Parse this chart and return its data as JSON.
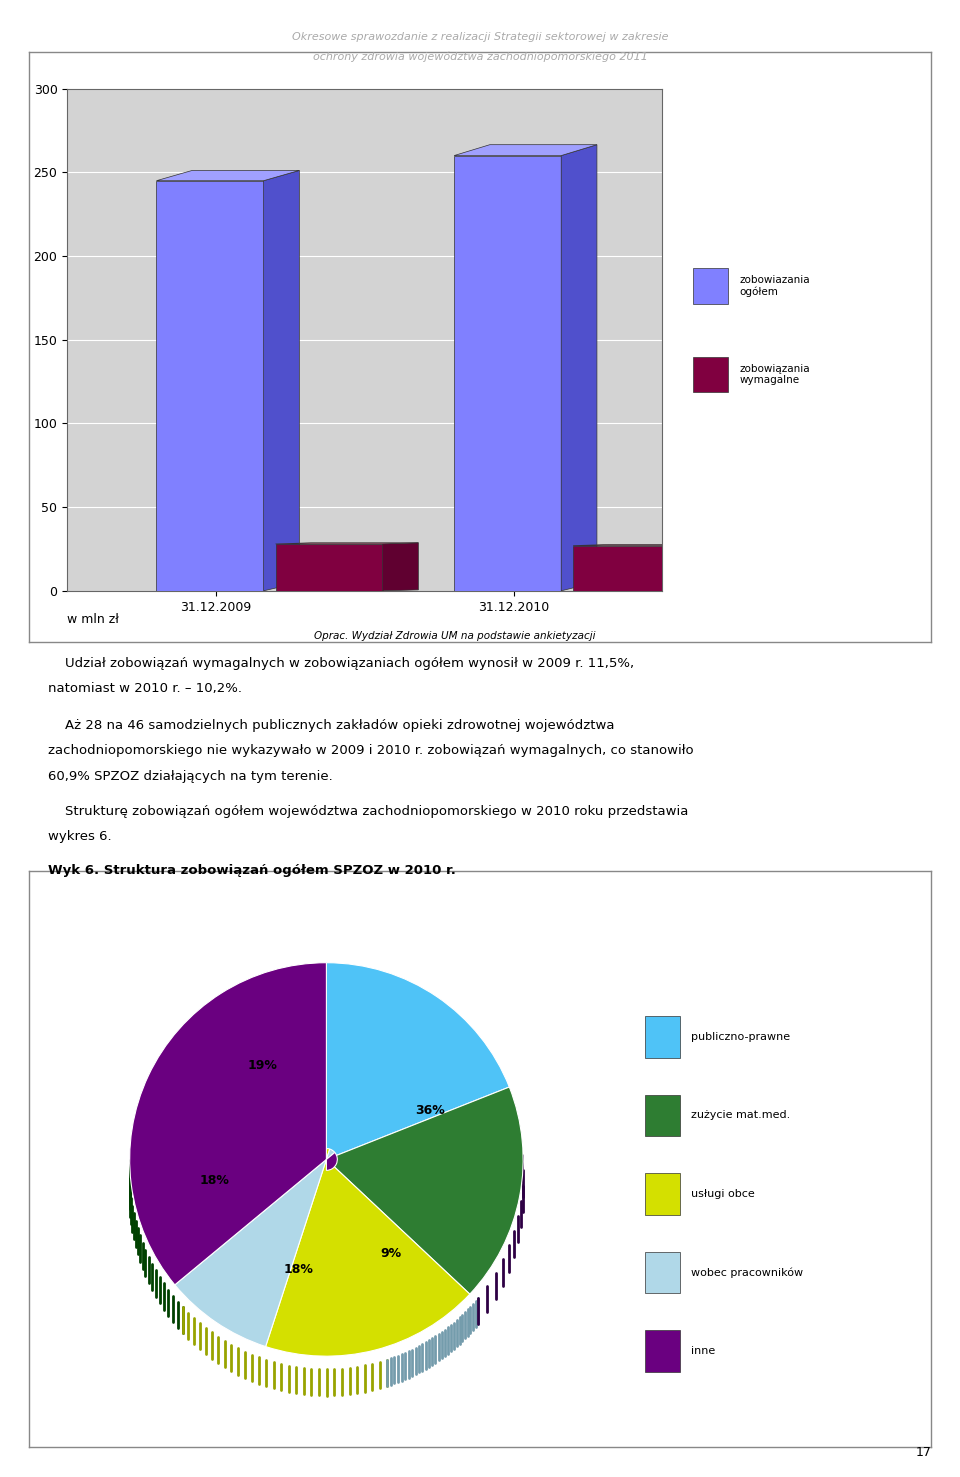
{
  "page_title_line1": "Okresowe sprawozdanie z realizacji Strategii sektorowej w zakresie",
  "page_title_line2": "ochrony zdrowia województwa zachodniopomorskiego 2011",
  "page_number": "17",
  "bar_categories": [
    "31.12.2009",
    "31.12.2010"
  ],
  "bar_series": [
    {
      "label": "zobowiazania ogółem",
      "values": [
        245,
        260
      ],
      "color": "#8080ff"
    },
    {
      "label": "zobowiązania wymagalne",
      "values": [
        28,
        27
      ],
      "color": "#800040"
    }
  ],
  "bar_ylim": [
    0,
    300
  ],
  "bar_yticks": [
    0,
    50,
    100,
    150,
    200,
    250,
    300
  ],
  "bar_ylabel": "w mln zł",
  "bar_bg_color": "#c0c0c0",
  "bar_plot_bg": "#d3d3d3",
  "source_text": "Oprac. Wydział Zdrowia UM na podstawie ankietyzacji",
  "para1": "Udział zobowiązań wymagalnych w zobowiązaniach ogółem wynosił w 2009 r. 11,5%, natomiast w 2010 r. – 10,2%.",
  "para2": "Aż 28 na 46 samodzielnych publicznych zakładów opieki zdrowotnej województwa zachodniopomorskiego nie wykazywało w 2009 i 2010 r. zobowiązań wymagalnych, co stanowiło 60,9% SPZOZ działających na tym terenie.",
  "para3": "Strukturę zobowiązań ogółem województwa zachodniopomorskiego w 2010 roku przedstawia wykres 6.",
  "pie_title": "Wyk 6. Struktura zobowiązań ogółem SPZOZ w 2010 r.",
  "pie_labels": [
    "publiczno-prawne",
    "zużycie mat.med.",
    "usługi obce",
    "wobec pracowników",
    "inne"
  ],
  "pie_values": [
    19,
    18,
    18,
    9,
    36
  ],
  "pie_colors": [
    "#4fc3f7",
    "#2e7d32",
    "#d4e000",
    "#b0d8e8",
    "#6a0080"
  ],
  "pie_explode": [
    0.05,
    0.05,
    0.05,
    0.05,
    0.05
  ],
  "pie_label_texts": [
    "19%",
    "18%",
    "18%",
    "9%",
    "36%"
  ]
}
